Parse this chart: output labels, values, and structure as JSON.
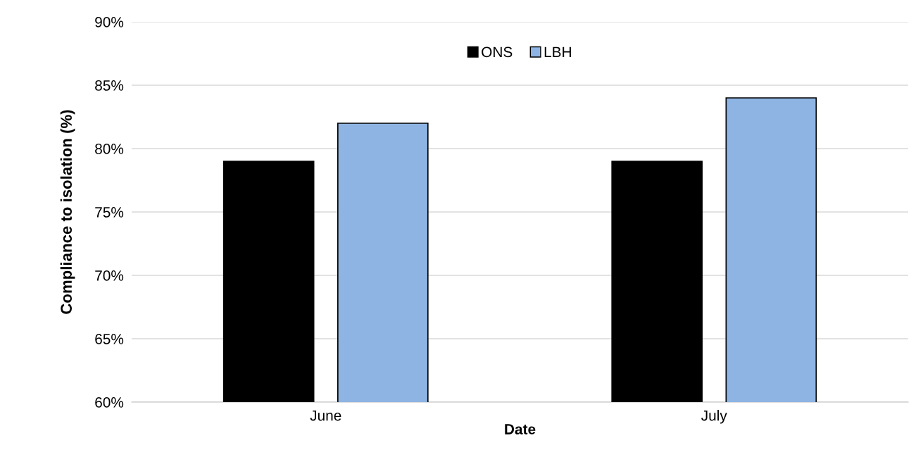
{
  "chart_data": {
    "type": "bar",
    "xlabel": "Date",
    "ylabel": "Compliance to isolation (%)",
    "categories": [
      "June",
      "July"
    ],
    "series": [
      {
        "name": "ONS",
        "color": "#000000",
        "values": [
          79,
          79
        ]
      },
      {
        "name": "LBH",
        "color": "#8eb4e3",
        "values": [
          82,
          84
        ]
      }
    ],
    "ylim": [
      60,
      90
    ],
    "yticks": [
      {
        "value": 60,
        "label": "60%"
      },
      {
        "value": 65,
        "label": "65%"
      },
      {
        "value": 70,
        "label": "70%"
      },
      {
        "value": 75,
        "label": "75%"
      },
      {
        "value": 80,
        "label": "80%"
      },
      {
        "value": 85,
        "label": "85%"
      },
      {
        "value": 90,
        "label": "90%"
      }
    ],
    "grid": "y",
    "legend": "top"
  }
}
